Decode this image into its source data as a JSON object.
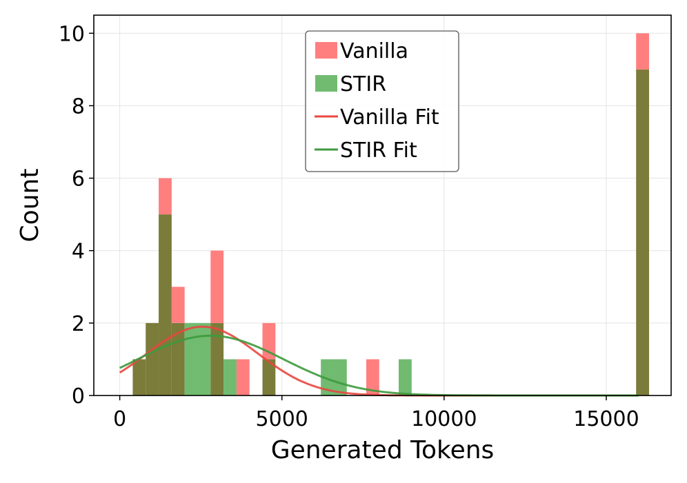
{
  "chart_data": {
    "type": "histogram",
    "title": "",
    "xlabel": "Generated Tokens",
    "ylabel": "Count",
    "xlim": [
      -800,
      17000
    ],
    "ylim": [
      0,
      10.5
    ],
    "xticks": [
      0,
      5000,
      10000,
      15000
    ],
    "yticks": [
      0,
      2,
      4,
      6,
      8,
      10
    ],
    "xtick_labels": [
      "0",
      "5000",
      "10000",
      "15000"
    ],
    "ytick_labels": [
      "0",
      "2",
      "4",
      "6",
      "8",
      "10"
    ],
    "grid": true,
    "legend_position": "top-center",
    "bin_width": 400,
    "series": [
      {
        "name": "Vanilla",
        "color": "#ff7f7f",
        "bins": [
          {
            "start": 400,
            "count": 1
          },
          {
            "start": 800,
            "count": 2
          },
          {
            "start": 1200,
            "count": 6
          },
          {
            "start": 1600,
            "count": 3
          },
          {
            "start": 2000,
            "count": 0
          },
          {
            "start": 2400,
            "count": 0
          },
          {
            "start": 2800,
            "count": 4
          },
          {
            "start": 3200,
            "count": 0
          },
          {
            "start": 3600,
            "count": 1
          },
          {
            "start": 4000,
            "count": 0
          },
          {
            "start": 4400,
            "count": 2
          },
          {
            "start": 7600,
            "count": 1
          },
          {
            "start": 15920,
            "count": 10
          }
        ]
      },
      {
        "name": "STIR",
        "color": "#70bb70",
        "bins": [
          {
            "start": 400,
            "count": 1
          },
          {
            "start": 800,
            "count": 2
          },
          {
            "start": 1200,
            "count": 5
          },
          {
            "start": 1600,
            "count": 2
          },
          {
            "start": 2000,
            "count": 2
          },
          {
            "start": 2400,
            "count": 2
          },
          {
            "start": 2800,
            "count": 2
          },
          {
            "start": 3200,
            "count": 1
          },
          {
            "start": 4400,
            "count": 1
          },
          {
            "start": 6200,
            "count": 1
          },
          {
            "start": 6600,
            "count": 1
          },
          {
            "start": 8600,
            "count": 1
          },
          {
            "start": 15920,
            "count": 9
          }
        ]
      }
    ],
    "fits": [
      {
        "name": "Vanilla Fit",
        "color": "#e8473f",
        "type": "normal",
        "peak": 1.9,
        "mean": 2550,
        "std": 1720
      },
      {
        "name": "STIR Fit",
        "color": "#3d9a3d",
        "type": "normal",
        "peak": 1.65,
        "mean": 2800,
        "std": 2250
      }
    ],
    "overlap_color": "#7b7b3a"
  }
}
